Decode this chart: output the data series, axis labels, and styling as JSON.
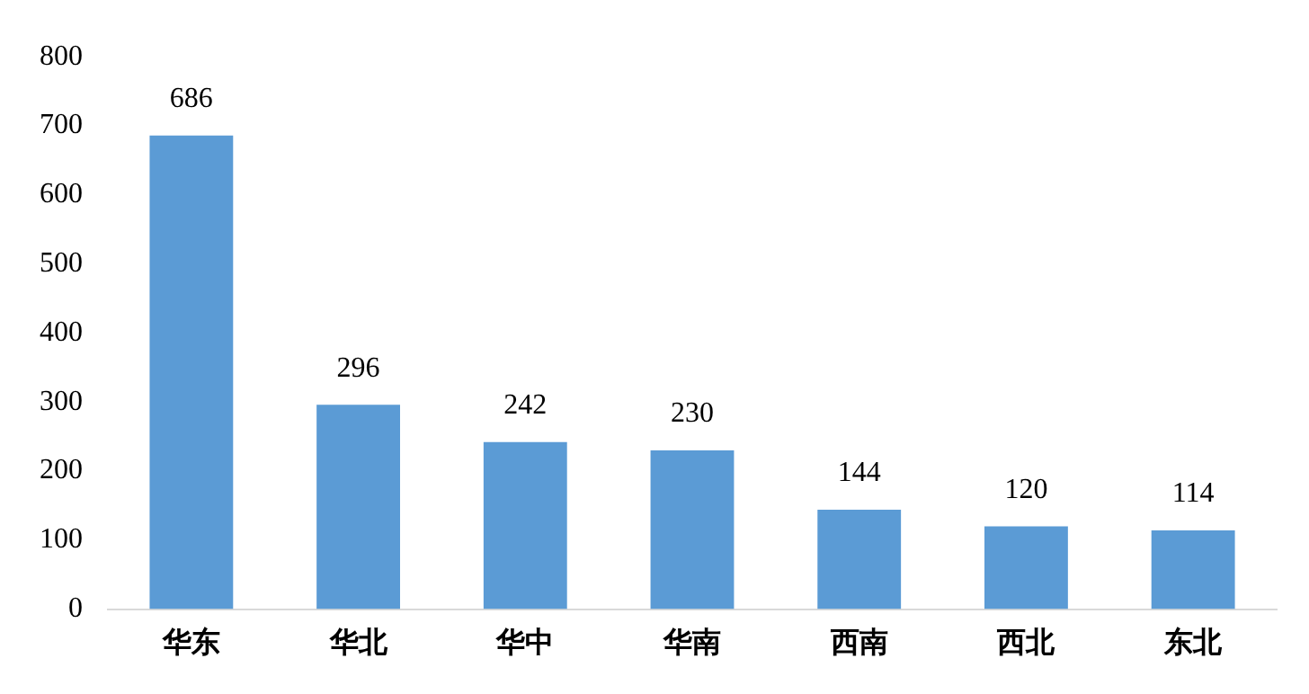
{
  "chart_data": {
    "type": "bar",
    "categories": [
      "华东",
      "华北",
      "华中",
      "华南",
      "西南",
      "西北",
      "东北"
    ],
    "values": [
      686,
      296,
      242,
      230,
      144,
      120,
      114
    ],
    "color": "#5b9bd5",
    "ylim": [
      0,
      800
    ],
    "yticks": [
      0,
      100,
      200,
      300,
      400,
      500,
      600,
      700,
      800
    ],
    "grid": false,
    "data_labels": true
  }
}
